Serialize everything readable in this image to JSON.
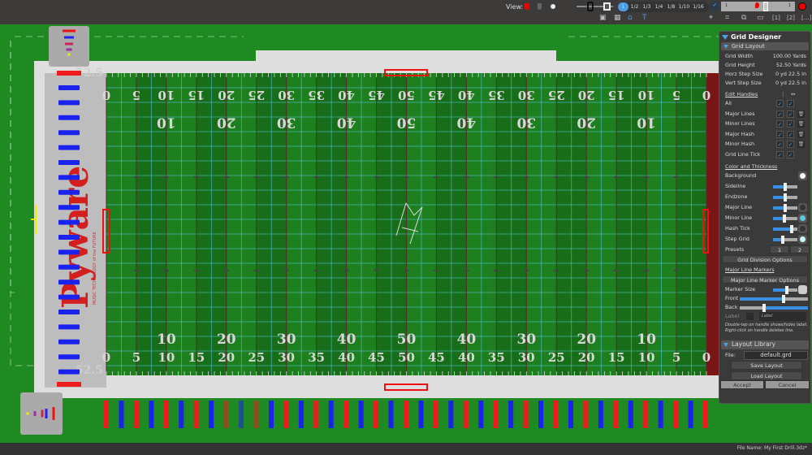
{
  "toolbar": {
    "view_label": "View:",
    "zoom_options": [
      "1",
      "1/2",
      "1/3",
      "1/4",
      "1/8",
      "1/10",
      "1/16"
    ],
    "zoom_selected": "1",
    "range_start": "1",
    "range_end": "1",
    "icons_left": [
      "frame-icon",
      "grid-icon",
      "home-icon",
      "text-icon"
    ],
    "icons_right": [
      "target-icon",
      "fit-icon",
      "link-icon",
      "camera-icon",
      "view-1-icon",
      "view-2-icon",
      "more-icon"
    ]
  },
  "field": {
    "bottom_numbers": [
      "0",
      "5",
      "10",
      "15",
      "20",
      "25",
      "30",
      "35",
      "40",
      "45",
      "50",
      "45",
      "40",
      "35",
      "30",
      "25",
      "20",
      "15",
      "10",
      "5",
      "0"
    ],
    "bottom_big_numbers": [
      "10",
      "20",
      "30",
      "40",
      "50",
      "40",
      "30",
      "20",
      "10"
    ],
    "corner_label": "52.5",
    "logo_text": "Pyware",
    "logo_tagline": "MUSIC TECHNOLOGY of the FUTURE",
    "colors": {
      "grass": "#1f8a22",
      "major_line": "#5a2a2a",
      "minor_line": "#4fc3d9",
      "marker_red": "#ee1c1c",
      "marker_blue": "#1a22ee"
    }
  },
  "panel": {
    "title": "Grid Designer",
    "layout_header": "Grid Layout",
    "props": [
      {
        "label": "Grid Width",
        "value": "100.00 Yards"
      },
      {
        "label": "Grid Height",
        "value": "52.50 Yards"
      },
      {
        "label": "Horz Step Size",
        "value": "0 yd 22.5 in"
      },
      {
        "label": "Vert Step Size",
        "value": "0 yd 22.5 in"
      }
    ],
    "edit_handles": "Edit Handles",
    "handles": [
      {
        "label": "All",
        "trash": false
      },
      {
        "label": "Major Lines",
        "trash": true
      },
      {
        "label": "Minor Lines",
        "trash": true
      },
      {
        "label": "Major Hash",
        "trash": true
      },
      {
        "label": "Minor Hash",
        "trash": true
      },
      {
        "label": "Grid Line Tick",
        "trash": false
      }
    ],
    "color_header": "Color and Thickness",
    "color_rows": [
      {
        "label": "Background",
        "slider": null,
        "swatch": "#ffffff"
      },
      {
        "label": "Sideline",
        "slider": 0.5,
        "swatch": null
      },
      {
        "label": "Endzone",
        "slider": 0.5,
        "swatch": null
      },
      {
        "label": "Major Line",
        "slider": 0.5,
        "swatch": "#333333"
      },
      {
        "label": "Minor Line",
        "slider": 0.45,
        "swatch": "#5bc8e0"
      },
      {
        "label": "Hash Tick",
        "slider": 0.75,
        "swatch": "#333333"
      },
      {
        "label": "Step Grid",
        "slider": 0.4,
        "swatch": "#ccffff"
      }
    ],
    "presets_label": "Presets",
    "presets": [
      "1",
      "2"
    ],
    "grid_division": "Grid Division Options",
    "markers_header": "Major Line Markers",
    "marker_options": "Major Line Marker Options",
    "marker_size": "Marker Size",
    "front": "Front",
    "back": "Back",
    "label": "Label",
    "label_placeholder": "Label",
    "note1": "Double-tap on handle shows/hides label.",
    "note2": "Right-click on handle deletes line.",
    "library_header": "Layout Library",
    "file_label": "File:",
    "file_value": "default.grd",
    "save": "Save Layout",
    "load": "Load Layout",
    "accept": "Accept",
    "cancel": "Cancel"
  },
  "status": {
    "file_name": "File Name: My First Drill.3dz*"
  }
}
